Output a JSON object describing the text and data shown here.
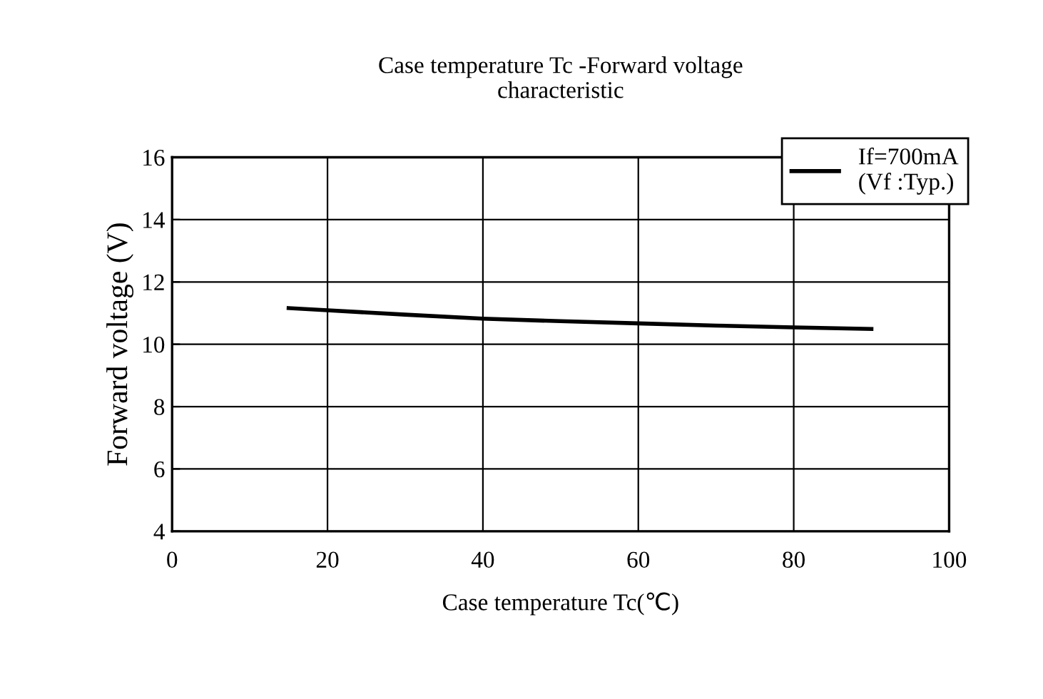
{
  "chart_data": {
    "type": "line",
    "title": "Case temperature Tc -Forward voltage\ncharacteristic",
    "xlabel": "Case temperature Tc(℃)",
    "ylabel": "Forward voltage (V)",
    "x": [
      15,
      20,
      30,
      40,
      50,
      60,
      70,
      80,
      90
    ],
    "series": [
      {
        "name": "If=700mA\n(Vf :Typ.)",
        "color": "#000000",
        "values": [
          11.16,
          11.09,
          10.95,
          10.82,
          10.74,
          10.67,
          10.6,
          10.54,
          10.49
        ]
      }
    ],
    "xlim": [
      0,
      100
    ],
    "xticks": [
      0,
      20,
      40,
      60,
      80,
      100
    ],
    "ylim": [
      4,
      16
    ],
    "yticks": [
      4,
      6,
      8,
      10,
      12,
      14,
      16
    ],
    "grid": true,
    "legend": "top right",
    "marker": "none",
    "line_style": "solid"
  }
}
